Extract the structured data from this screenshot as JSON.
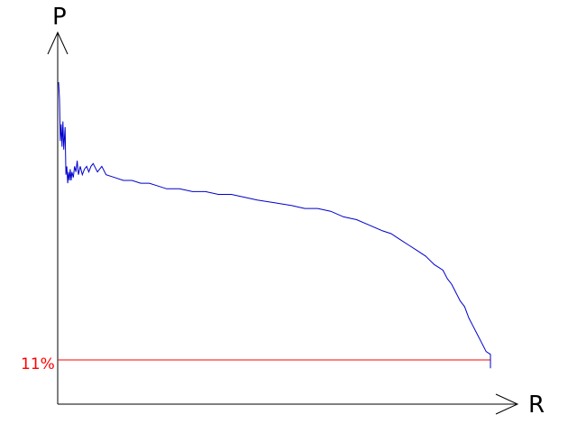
{
  "chart_data": {
    "type": "line",
    "title": "",
    "xlabel": "R",
    "ylabel": "P",
    "xlim": [
      0,
      1
    ],
    "ylim": [
      0,
      1
    ],
    "grid": false,
    "legend": "none",
    "series": [
      {
        "color": "#0000cc",
        "x": [
          0.0,
          0.002,
          0.004,
          0.006,
          0.008,
          0.01,
          0.012,
          0.015,
          0.017,
          0.019,
          0.021,
          0.023,
          0.025,
          0.027,
          0.029,
          0.031,
          0.034,
          0.037,
          0.04,
          0.043,
          0.046,
          0.05,
          0.055,
          0.06,
          0.065,
          0.07,
          0.075,
          0.08,
          0.09,
          0.1,
          0.11,
          0.13,
          0.15,
          0.17,
          0.19,
          0.21,
          0.23,
          0.25,
          0.28,
          0.31,
          0.34,
          0.37,
          0.4,
          0.43,
          0.46,
          0.5,
          0.54,
          0.57,
          0.6,
          0.63,
          0.66,
          0.69,
          0.72,
          0.75,
          0.77,
          0.79,
          0.81,
          0.83,
          0.85,
          0.87,
          0.89,
          0.9,
          0.91,
          0.92,
          0.93,
          0.94,
          0.95,
          0.96,
          0.97,
          0.98,
          0.99,
          1.0,
          1.0
        ],
        "y": [
          0.99,
          0.93,
          0.78,
          0.84,
          0.76,
          0.85,
          0.75,
          0.83,
          0.66,
          0.69,
          0.63,
          0.67,
          0.64,
          0.68,
          0.64,
          0.67,
          0.65,
          0.69,
          0.67,
          0.71,
          0.66,
          0.69,
          0.66,
          0.68,
          0.69,
          0.67,
          0.69,
          0.7,
          0.67,
          0.69,
          0.66,
          0.65,
          0.64,
          0.64,
          0.63,
          0.63,
          0.62,
          0.61,
          0.61,
          0.6,
          0.6,
          0.59,
          0.59,
          0.58,
          0.57,
          0.56,
          0.55,
          0.54,
          0.54,
          0.53,
          0.51,
          0.5,
          0.48,
          0.46,
          0.45,
          0.43,
          0.41,
          0.39,
          0.37,
          0.34,
          0.32,
          0.29,
          0.27,
          0.24,
          0.21,
          0.19,
          0.15,
          0.12,
          0.09,
          0.06,
          0.03,
          0.02,
          -0.03
        ]
      }
    ],
    "reference_line": {
      "label": "11%",
      "y": 0.0,
      "color": "#ff0000"
    }
  }
}
